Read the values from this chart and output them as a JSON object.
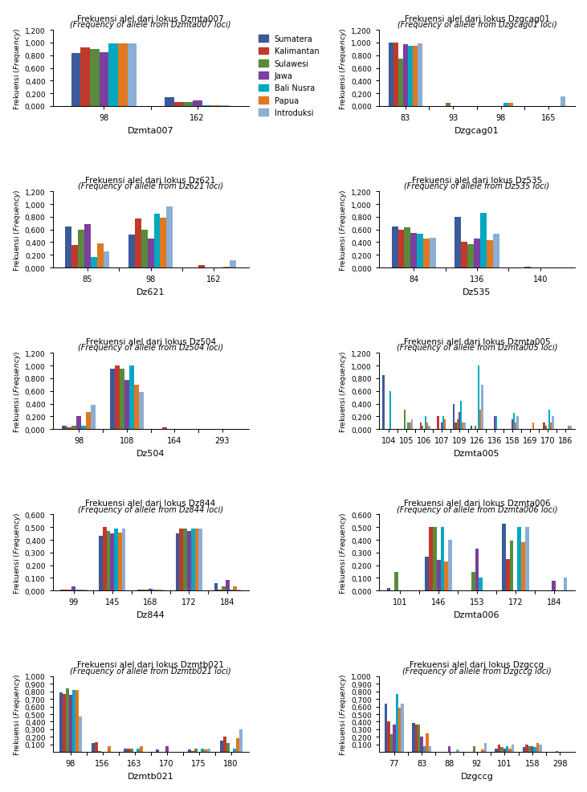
{
  "colors": [
    "#3c5a9a",
    "#c0392b",
    "#5a8a3c",
    "#7b3f9e",
    "#00a8c0",
    "#e07820",
    "#8baed4"
  ],
  "populations": [
    "Sumatera",
    "Kalimantan",
    "Sulawesi",
    "Jawa",
    "Bali Nusra",
    "Papua",
    "Introduksi"
  ],
  "charts": [
    {
      "title": "Frekuensi alel dari lokus Dzmta007",
      "subtitle": "(Frequency of allele from Dzmta007 loci)",
      "xlabel": "Dzmta007",
      "ylim": [
        0,
        1.2
      ],
      "yticks": [
        0.0,
        0.2,
        0.4,
        0.6,
        0.8,
        1.0,
        1.2
      ],
      "ytick_labels": [
        "0,000",
        "0,200",
        "0,400",
        "0,600",
        "0,800",
        "1,000",
        "1,200"
      ],
      "alleles": [
        "98",
        "162"
      ],
      "values": [
        [
          0.833,
          0.14
        ],
        [
          0.917,
          0.06
        ],
        [
          0.9,
          0.06
        ],
        [
          0.85,
          0.09
        ],
        [
          0.983,
          0.017
        ],
        [
          0.983,
          0.017
        ],
        [
          0.983,
          0.017
        ]
      ]
    },
    {
      "title": "Frekuensi alel dari lokus Dzgcag01",
      "subtitle": "(Frequency of allele from Dzgcag01 loci)",
      "xlabel": "Dzgcag01",
      "ylim": [
        0,
        1.2
      ],
      "yticks": [
        0.0,
        0.2,
        0.4,
        0.6,
        0.8,
        1.0,
        1.2
      ],
      "ytick_labels": [
        "0,000",
        "0,200",
        "0,400",
        "0,600",
        "0,800",
        "1,000",
        "1,200"
      ],
      "alleles": [
        "83",
        "93",
        "98",
        "165"
      ],
      "values": [
        [
          1.0,
          0.0,
          0.0,
          0.0
        ],
        [
          1.0,
          0.0,
          0.0,
          0.0
        ],
        [
          0.75,
          0.05,
          0.0,
          0.0
        ],
        [
          0.975,
          0.0,
          0.0,
          0.0
        ],
        [
          0.95,
          0.0,
          0.05,
          0.0
        ],
        [
          0.95,
          0.0,
          0.05,
          0.0
        ],
        [
          0.983,
          0.0,
          0.0,
          0.15
        ]
      ]
    },
    {
      "title": "Frekuensi alel dari lokus Dz621",
      "subtitle": "(Frequency of allele from Dz621 loci)",
      "xlabel": "Dz621",
      "ylim": [
        0,
        1.2
      ],
      "yticks": [
        0.0,
        0.2,
        0.4,
        0.6,
        0.8,
        1.0,
        1.2
      ],
      "ytick_labels": [
        "0,000",
        "0,200",
        "0,400",
        "0,600",
        "0,800",
        "1,000",
        "1,200"
      ],
      "alleles": [
        "85",
        "98",
        "162"
      ],
      "values": [
        [
          0.65,
          0.517,
          0.0
        ],
        [
          0.35,
          0.767,
          0.033
        ],
        [
          0.6,
          0.6,
          0.0
        ],
        [
          0.683,
          0.45,
          0.0
        ],
        [
          0.167,
          0.85,
          0.0
        ],
        [
          0.383,
          0.783,
          0.017
        ],
        [
          0.25,
          0.967,
          0.117
        ]
      ]
    },
    {
      "title": "Frekuensi alel dari lokus Dz535",
      "subtitle": "(Frequency of allele from Dz535 loci)",
      "xlabel": "Dz535",
      "ylim": [
        0,
        1.2
      ],
      "yticks": [
        0.0,
        0.2,
        0.4,
        0.6,
        0.8,
        1.0,
        1.2
      ],
      "ytick_labels": [
        "0,000",
        "0,200",
        "0,400",
        "0,600",
        "0,800",
        "1,000",
        "1,200"
      ],
      "alleles": [
        "84",
        "136",
        "140"
      ],
      "values": [
        [
          0.65,
          0.8,
          0.0
        ],
        [
          0.6,
          0.4,
          0.017
        ],
        [
          0.633,
          0.367,
          0.0
        ],
        [
          0.55,
          0.45,
          0.0
        ],
        [
          0.533,
          0.867,
          0.0
        ],
        [
          0.45,
          0.433,
          0.0
        ],
        [
          0.467,
          0.533,
          0.0
        ]
      ]
    },
    {
      "title": "Frekuensi alel dari lokus Dz504",
      "subtitle": "(Frequency of allele from Dz504 loci)",
      "xlabel": "Dz504",
      "ylim": [
        0,
        1.2
      ],
      "yticks": [
        0.0,
        0.2,
        0.4,
        0.6,
        0.8,
        1.0,
        1.2
      ],
      "ytick_labels": [
        "0,000",
        "0,200",
        "0,400",
        "0,600",
        "0,800",
        "1,000",
        "1,200"
      ],
      "alleles": [
        "98",
        "108",
        "164",
        "293"
      ],
      "values": [
        [
          0.05,
          0.95,
          0.0,
          0.0
        ],
        [
          0.033,
          1.0,
          0.033,
          0.0
        ],
        [
          0.05,
          0.95,
          0.0,
          0.0
        ],
        [
          0.2,
          0.78,
          0.0,
          0.0
        ],
        [
          0.05,
          1.0,
          0.0,
          0.0
        ],
        [
          0.27,
          0.7,
          0.0,
          0.0
        ],
        [
          0.383,
          0.583,
          0.0,
          0.0
        ]
      ]
    },
    {
      "title": "Frekuensi alel dari lokus Dzmta005",
      "subtitle": "(Frequency of allele from Dzmta005 loci)",
      "xlabel": "Dzmta005",
      "ylim": [
        0,
        1.2
      ],
      "yticks": [
        0.0,
        0.2,
        0.4,
        0.6,
        0.8,
        1.0,
        1.2
      ],
      "ytick_labels": [
        "0,000",
        "0,200",
        "0,400",
        "0,600",
        "0,800",
        "1,000",
        "1,200"
      ],
      "alleles": [
        "104",
        "105",
        "106",
        "107",
        "109",
        "126",
        "136",
        "158",
        "169",
        "170",
        "186"
      ],
      "values": [
        [
          0.85,
          0.0,
          0.0,
          0.0,
          0.4,
          0.05,
          0.0,
          0.0,
          0.0,
          0.0,
          0.0
        ],
        [
          0.0,
          0.0,
          0.1,
          0.2,
          0.1,
          0.0,
          0.0,
          0.0,
          0.0,
          0.1,
          0.0
        ],
        [
          0.0,
          0.3,
          0.05,
          0.0,
          0.15,
          0.05,
          0.0,
          0.0,
          0.0,
          0.05,
          0.0
        ],
        [
          0.0,
          0.0,
          0.0,
          0.1,
          0.27,
          0.0,
          0.2,
          0.15,
          0.0,
          0.0,
          0.0
        ],
        [
          0.6,
          0.1,
          0.2,
          0.2,
          0.45,
          1.0,
          0.2,
          0.25,
          0.0,
          0.3,
          0.0
        ],
        [
          0.0,
          0.1,
          0.1,
          0.15,
          0.1,
          0.3,
          0.0,
          0.1,
          0.1,
          0.1,
          0.05
        ],
        [
          0.0,
          0.15,
          0.05,
          0.0,
          0.1,
          0.7,
          0.0,
          0.2,
          0.0,
          0.2,
          0.05
        ]
      ]
    },
    {
      "title": "Frekuensi alel dari lokus Dz844",
      "subtitle": "(Frequency of allele from Dz844 loci)",
      "xlabel": "Dz844",
      "ylim": [
        0,
        0.6
      ],
      "yticks": [
        0.0,
        0.1,
        0.2,
        0.3,
        0.4,
        0.5,
        0.6
      ],
      "ytick_labels": [
        "0,000",
        "0,100",
        "0,200",
        "0,300",
        "0,400",
        "0,500",
        "0,600"
      ],
      "alleles": [
        "99",
        "145",
        "168",
        "172",
        "184"
      ],
      "values": [
        [
          0.01,
          0.433,
          0.01,
          0.45,
          0.06
        ],
        [
          0.01,
          0.5,
          0.01,
          0.49,
          0.01
        ],
        [
          0.01,
          0.467,
          0.01,
          0.49,
          0.033
        ],
        [
          0.033,
          0.45,
          0.017,
          0.467,
          0.083
        ],
        [
          0.01,
          0.49,
          0.01,
          0.49,
          0.01
        ],
        [
          0.01,
          0.46,
          0.01,
          0.49,
          0.033
        ],
        [
          0.01,
          0.49,
          0.01,
          0.49,
          0.01
        ]
      ]
    },
    {
      "title": "Frekuensi alel dari lokus Dzmta006",
      "subtitle": "(Frequency of allele from Dzmta006 loci)",
      "xlabel": "Dzmta006",
      "ylim": [
        0,
        0.6
      ],
      "yticks": [
        0.0,
        0.1,
        0.2,
        0.3,
        0.4,
        0.5,
        0.6
      ],
      "ytick_labels": [
        "0,000",
        "0,100",
        "0,200",
        "0,300",
        "0,400",
        "0,500",
        "0,600"
      ],
      "alleles": [
        "101",
        "146",
        "153",
        "172",
        "184"
      ],
      "values": [
        [
          0.02,
          0.27,
          0.0,
          0.53,
          0.0
        ],
        [
          0.0,
          0.5,
          0.0,
          0.25,
          0.0
        ],
        [
          0.15,
          0.5,
          0.15,
          0.393,
          0.0
        ],
        [
          0.0,
          0.24,
          0.33,
          0.0,
          0.08
        ],
        [
          0.0,
          0.5,
          0.1,
          0.5,
          0.0
        ],
        [
          0.0,
          0.23,
          0.0,
          0.38,
          0.0
        ],
        [
          0.0,
          0.4,
          0.0,
          0.5,
          0.1
        ]
      ]
    },
    {
      "title": "Frekuensi alel dari lokus Dzmtb021",
      "subtitle": "(Frequency of allele from Dzmtb021 loci)",
      "xlabel": "Dzmtb021",
      "ylim": [
        0,
        1.0
      ],
      "yticks": [
        0.1,
        0.2,
        0.3,
        0.4,
        0.5,
        0.6,
        0.7,
        0.8,
        0.9,
        1.0
      ],
      "ytick_labels": [
        "0,100",
        "0,200",
        "0,300",
        "0,400",
        "0,500",
        "0,600",
        "0,700",
        "0,800",
        "0,900",
        "1,000"
      ],
      "alleles": [
        "98",
        "156",
        "163",
        "170",
        "175",
        "180"
      ],
      "values": [
        [
          0.783,
          0.117,
          0.05,
          0.033,
          0.033,
          0.15
        ],
        [
          0.767,
          0.133,
          0.05,
          0.0,
          0.017,
          0.2
        ],
        [
          0.833,
          0.017,
          0.05,
          0.0,
          0.05,
          0.117
        ],
        [
          0.75,
          0.0,
          0.0,
          0.083,
          0.0,
          0.0
        ],
        [
          0.817,
          0.0,
          0.05,
          0.0,
          0.05,
          0.05
        ],
        [
          0.817,
          0.083,
          0.083,
          0.0,
          0.033,
          0.183
        ],
        [
          0.467,
          0.0,
          0.0,
          0.0,
          0.05,
          0.3
        ]
      ]
    },
    {
      "title": "Frekuensi alel dari lokus Dzgccg",
      "subtitle": "(Frequency of allele from Dzgccg loci)",
      "xlabel": "Dzgccg",
      "ylim": [
        0,
        1.0
      ],
      "yticks": [
        0.1,
        0.2,
        0.3,
        0.4,
        0.5,
        0.6,
        0.7,
        0.8,
        0.9,
        1.0
      ],
      "ytick_labels": [
        "0,100",
        "0,200",
        "0,300",
        "0,400",
        "0,500",
        "0,600",
        "0,700",
        "0,800",
        "0,900",
        "1,000"
      ],
      "alleles": [
        "77",
        "83",
        "88",
        "92",
        "101",
        "158",
        "298"
      ],
      "values": [
        [
          0.633,
          0.383,
          0.0,
          0.0,
          0.05,
          0.067,
          0.0
        ],
        [
          0.4,
          0.367,
          0.0,
          0.0,
          0.1,
          0.1,
          0.0
        ],
        [
          0.233,
          0.367,
          0.0,
          0.083,
          0.067,
          0.083,
          0.017
        ],
        [
          0.367,
          0.2,
          0.083,
          0.0,
          0.05,
          0.083,
          0.0
        ],
        [
          0.767,
          0.083,
          0.0,
          0.0,
          0.083,
          0.067,
          0.0
        ],
        [
          0.583,
          0.25,
          0.0,
          0.033,
          0.05,
          0.117,
          0.0
        ],
        [
          0.633,
          0.083,
          0.033,
          0.117,
          0.1,
          0.1,
          0.0
        ]
      ]
    }
  ]
}
